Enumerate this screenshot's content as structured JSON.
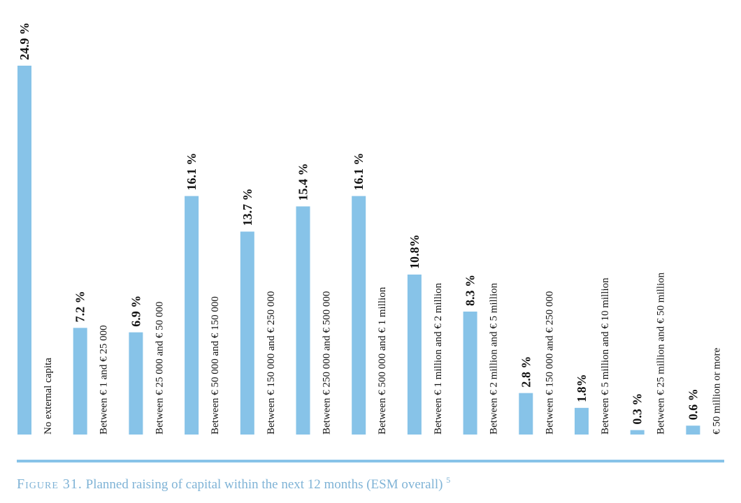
{
  "chart_data": {
    "type": "bar",
    "categories": [
      "No external capita",
      "Between € 1 and € 25 000",
      "Between € 25 000 and € 50 000",
      "Between € 50 000 and € 150 000",
      "Between € 150 000 and € 250 000",
      "Between € 250 000 and € 500 000",
      "Between € 500 000 and € 1 million",
      "Between € 1 million and € 2 million",
      "Between € 2 million and € 5 million",
      "Between € 150 000 and € 250 000",
      "Between € 5 million and € 10 million",
      "Between € 25 million and € 50 million",
      "€ 50 million or more"
    ],
    "values": [
      24.9,
      7.2,
      6.9,
      16.1,
      13.7,
      15.4,
      16.1,
      10.8,
      8.3,
      2.8,
      1.8,
      0.3,
      0.6
    ],
    "value_labels": [
      "24.9 %",
      "7.2 %",
      "6.9 %",
      "16.1 %",
      "13.7 %",
      "15.4 %",
      "16.1 %",
      "10.8%",
      "8.3 %",
      "2.8 %",
      "1.8%",
      "0.3 %",
      "0.6 %"
    ],
    "ylim": [
      0,
      24.9
    ],
    "colors": {
      "bar": "#87c3e8",
      "text": "#111111",
      "caption": "#7fb3d6"
    },
    "grid": false,
    "legend": "none"
  },
  "caption": {
    "figure_label": "Figure 31.",
    "text": " Planned raising of capital within the next 12 months (ESM overall) ",
    "footnote": "5"
  }
}
